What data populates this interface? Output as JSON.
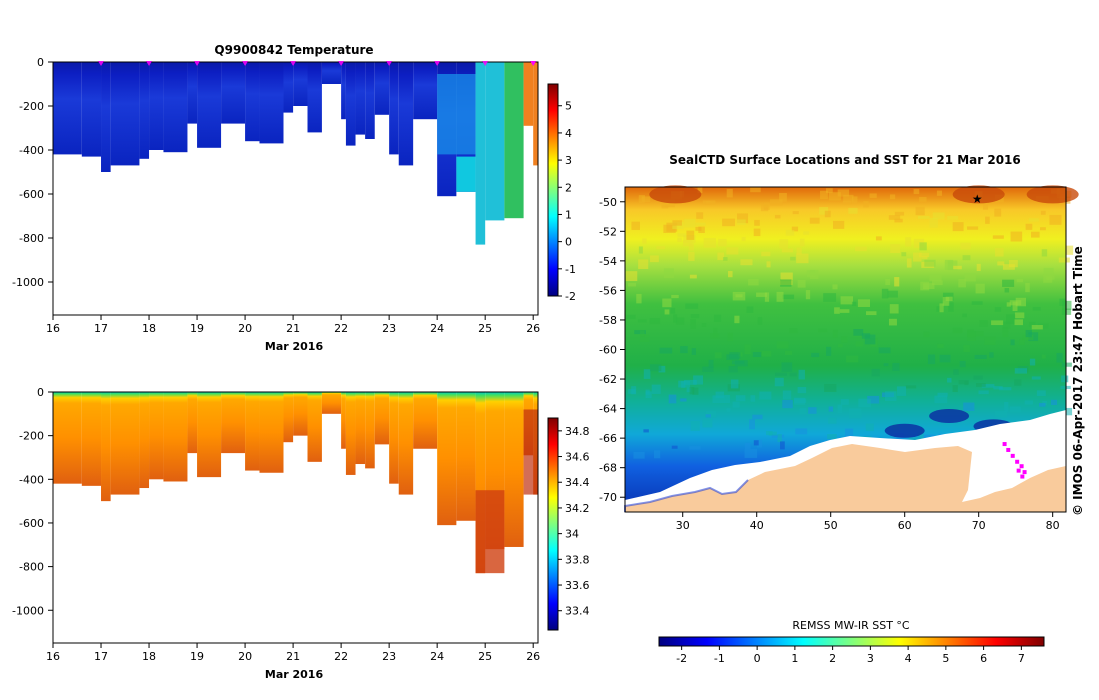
{
  "chart_data": [
    {
      "type": "heatmap",
      "title": "Q9900842  Temperature",
      "xlabel": "Mar 2016",
      "ylabel": "",
      "x_ticks": [
        "16",
        "17",
        "18",
        "19",
        "20",
        "21",
        "22",
        "23",
        "24",
        "25",
        "26"
      ],
      "y_ticks": [
        "0",
        "-200",
        "-400",
        "-600",
        "-800",
        "-1000"
      ],
      "xlim": [
        16,
        26.1
      ],
      "ylim": [
        -1150,
        0
      ],
      "profile_markers_day": [
        17,
        18,
        19,
        20,
        21,
        22,
        23,
        24,
        25,
        26
      ],
      "colorbar": {
        "min": -2,
        "max": 5.8,
        "ticks": [
          "5",
          "4",
          "3",
          "2",
          "1",
          "0",
          "-1",
          "-2"
        ],
        "tick_values": [
          5,
          4,
          3,
          2,
          1,
          0,
          -1,
          -2
        ]
      },
      "profile_depths": [
        [
          16.0,
          -420
        ],
        [
          16.6,
          -430
        ],
        [
          17.0,
          -500
        ],
        [
          17.2,
          -470
        ],
        [
          17.8,
          -440
        ],
        [
          18.0,
          -400
        ],
        [
          18.3,
          -410
        ],
        [
          18.8,
          -280
        ],
        [
          19.0,
          -390
        ],
        [
          19.5,
          -280
        ],
        [
          20.0,
          -360
        ],
        [
          20.3,
          -370
        ],
        [
          20.8,
          -230
        ],
        [
          21.0,
          -200
        ],
        [
          21.3,
          -320
        ],
        [
          21.6,
          -100
        ],
        [
          22.0,
          -260
        ],
        [
          22.1,
          -380
        ],
        [
          22.3,
          -330
        ],
        [
          22.5,
          -350
        ],
        [
          22.7,
          -240
        ],
        [
          23.0,
          -420
        ],
        [
          23.2,
          -470
        ],
        [
          23.5,
          -260
        ],
        [
          24.0,
          -610
        ],
        [
          24.4,
          -590
        ],
        [
          24.8,
          -830
        ],
        [
          25.0,
          -720
        ],
        [
          25.4,
          -710
        ],
        [
          25.8,
          -290
        ],
        [
          26.0,
          -470
        ]
      ],
      "colorscale": "jet"
    },
    {
      "type": "heatmap",
      "title": "",
      "xlabel": "Mar 2016",
      "ylabel": "",
      "x_ticks": [
        "16",
        "17",
        "18",
        "19",
        "20",
        "21",
        "22",
        "23",
        "24",
        "25",
        "26"
      ],
      "y_ticks": [
        "0",
        "-200",
        "-400",
        "-600",
        "-800",
        "-1000"
      ],
      "xlim": [
        16,
        26.1
      ],
      "ylim": [
        -1150,
        0
      ],
      "colorbar": {
        "min": 33.25,
        "max": 34.9,
        "ticks": [
          "34.8",
          "34.6",
          "34.4",
          "34.2",
          "34",
          "33.8",
          "33.6",
          "33.4"
        ],
        "tick_values": [
          34.8,
          34.6,
          34.4,
          34.2,
          34,
          33.8,
          33.6,
          33.4
        ]
      },
      "colorscale": "jet"
    },
    {
      "type": "heatmap",
      "title": "SealCTD Surface Locations and SST for 21 Mar 2016",
      "xlabel": "",
      "ylabel": "",
      "x_ticks": [
        "30",
        "40",
        "50",
        "60",
        "70",
        "80"
      ],
      "x_tick_values": [
        30,
        40,
        50,
        60,
        70,
        80
      ],
      "y_ticks": [
        "-50",
        "-52",
        "-54",
        "-56",
        "-58",
        "-60",
        "-62",
        "-64",
        "-66",
        "-68",
        "-70"
      ],
      "y_tick_values": [
        -50,
        -52,
        -54,
        -56,
        -58,
        -60,
        -62,
        -64,
        -66,
        -68,
        -70
      ],
      "xlim": [
        22.2,
        81.8
      ],
      "ylim": [
        -71,
        -49
      ],
      "colorbar": {
        "label": "REMSS MW-IR SST °C",
        "min": -2.6,
        "max": 7.6,
        "ticks": [
          "-2",
          "-1",
          "0",
          "1",
          "2",
          "3",
          "4",
          "5",
          "6",
          "7"
        ],
        "tick_values": [
          -2,
          -1,
          0,
          1,
          2,
          3,
          4,
          5,
          6,
          7
        ]
      },
      "credit": "©  IMOS 06-Apr-2017 23:47 Hobart Time",
      "colorscale": "jet"
    }
  ],
  "colors": {
    "land": "#f9cb9c",
    "ice": "#ffffff",
    "track": "#ff00ff",
    "jet": [
      "#00007f",
      "#0000ff",
      "#007fff",
      "#00ffff",
      "#7fff7f",
      "#ffff00",
      "#ff7f00",
      "#ff0000",
      "#7f0000"
    ]
  }
}
